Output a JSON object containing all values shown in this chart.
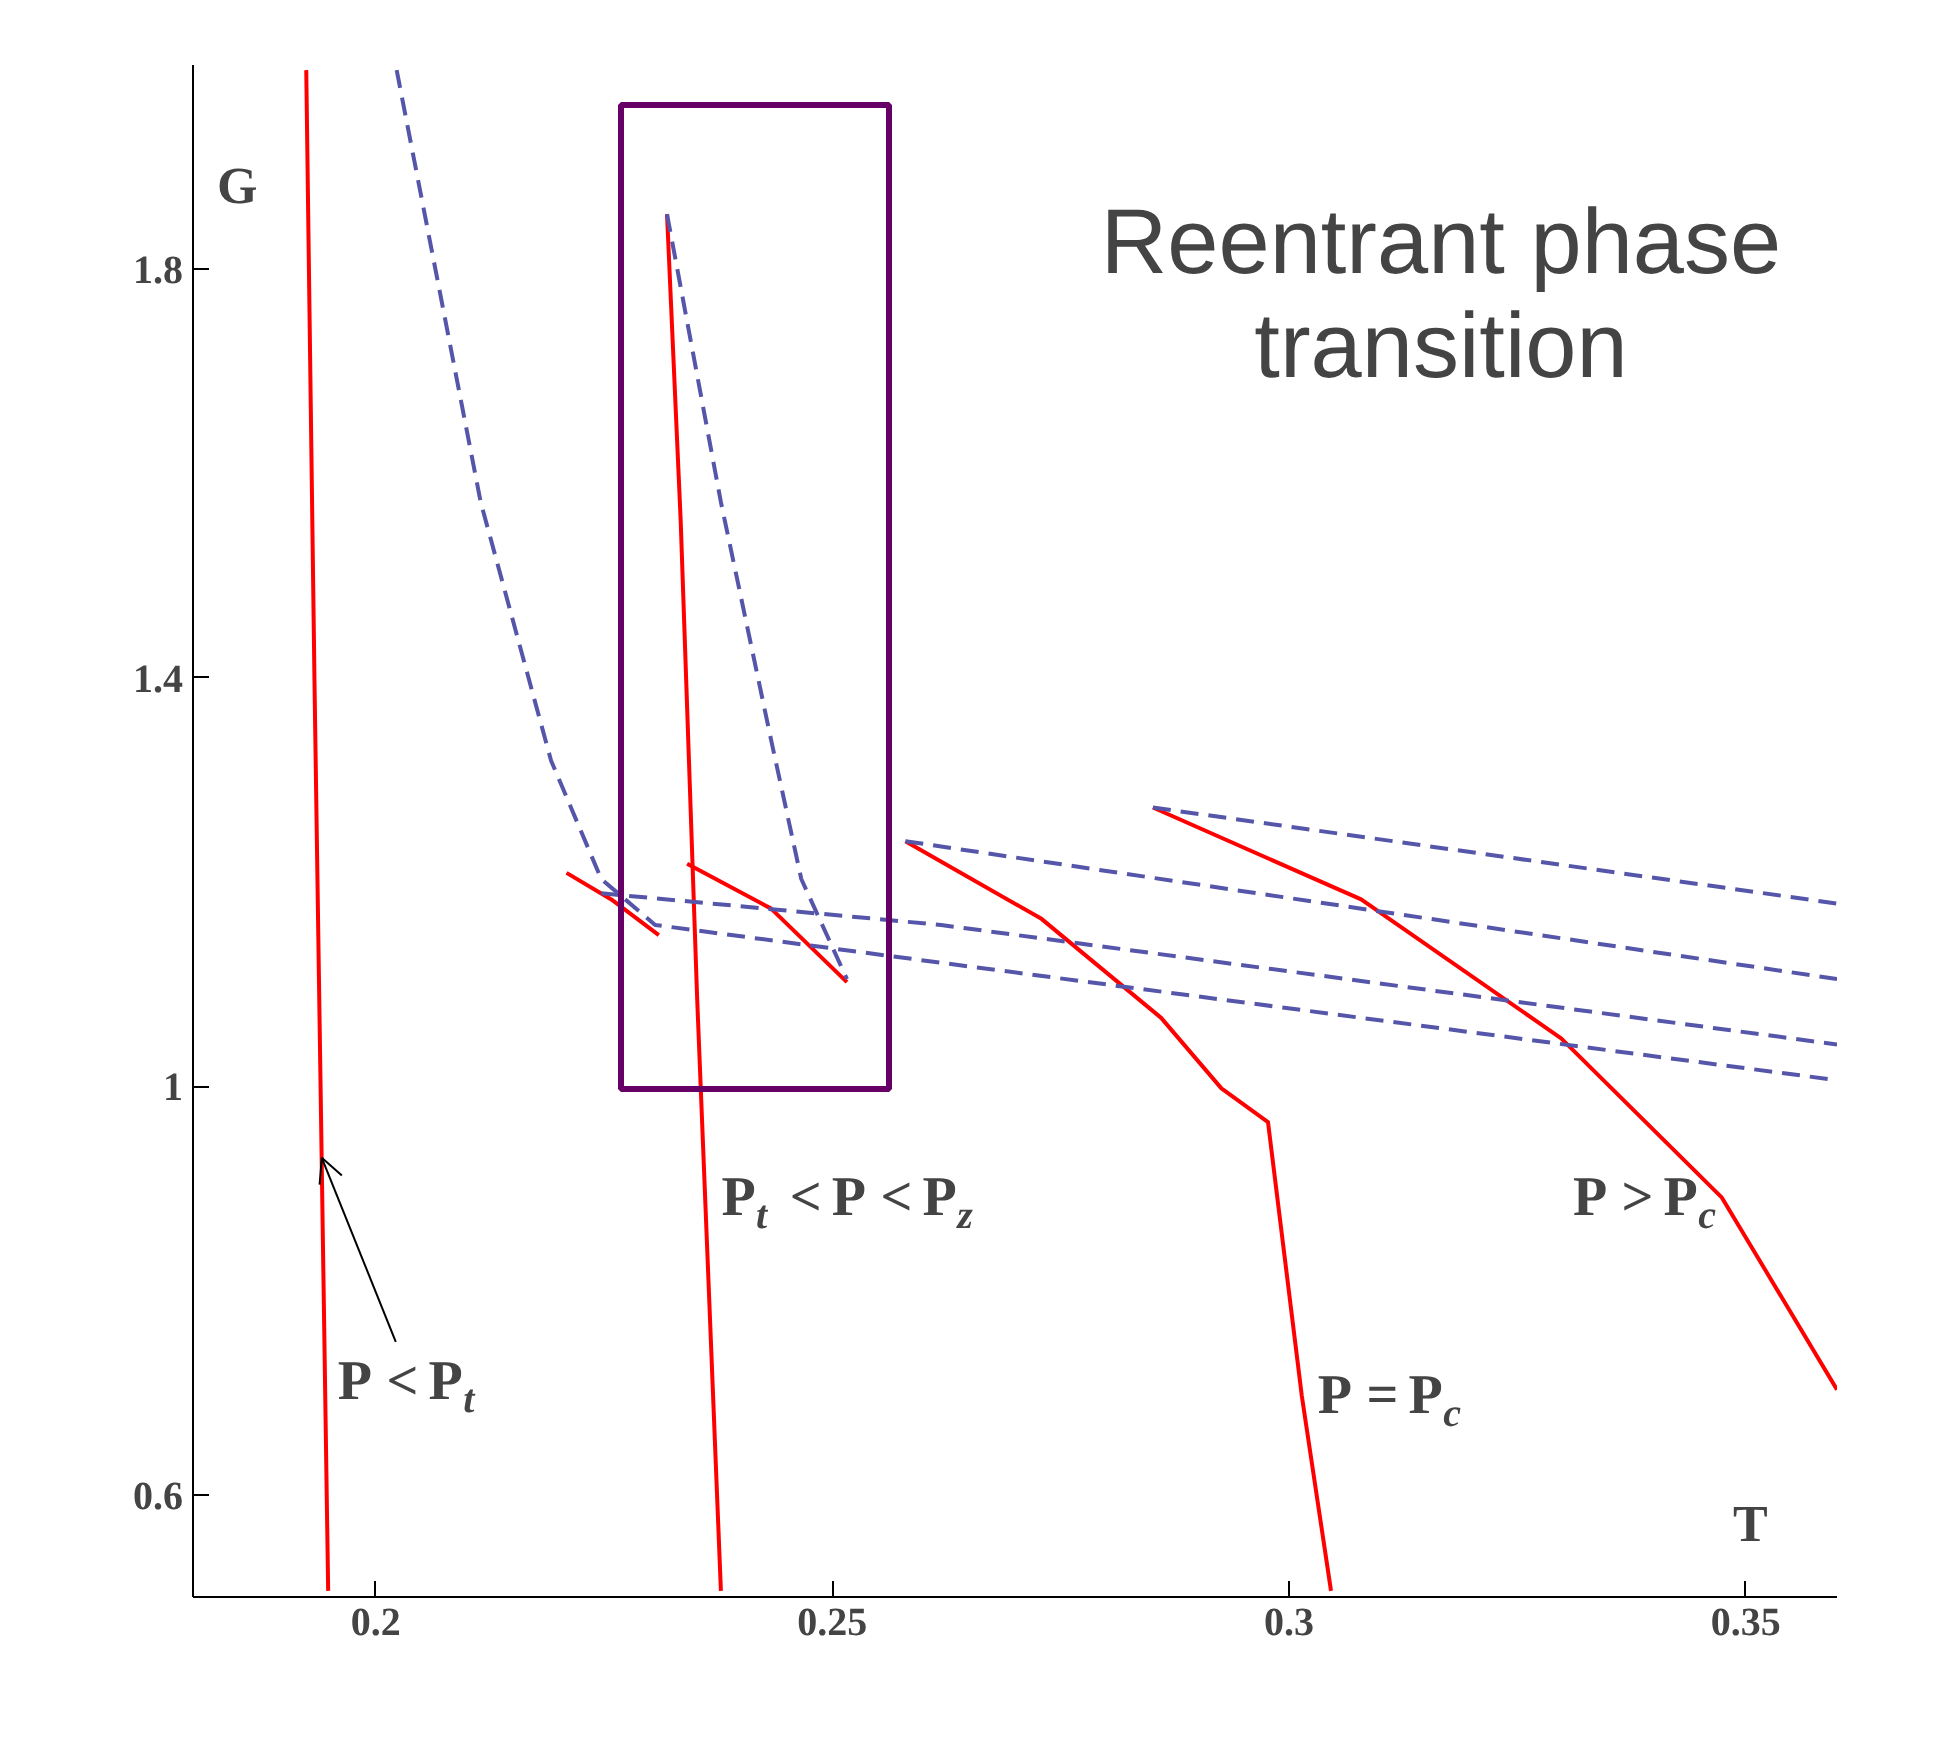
{
  "chart_data": {
    "type": "line",
    "xlabel": "T",
    "ylabel": "G",
    "xlim": [
      0.18,
      0.36
    ],
    "ylim": [
      0.5,
      2.0
    ],
    "xticks": [
      0.2,
      0.25,
      0.3,
      0.35
    ],
    "yticks": [
      0.6,
      1,
      1.4,
      1.8
    ],
    "grid": false,
    "marker": "none",
    "series": [
      {
        "color": "#ff0000",
        "line_style": "solid",
        "x": [
          0.1924,
          0.1933,
          0.1948
        ],
        "values": [
          1.995,
          1.397,
          0.506
        ]
      },
      {
        "color": "#ff0000",
        "line_style": "solid",
        "x": [
          0.2209,
          0.2258,
          0.231
        ],
        "values": [
          1.209,
          1.183,
          1.148
        ]
      },
      {
        "color": "#ff0000",
        "line_style": "solid",
        "x": [
          0.2319,
          0.2334,
          0.2352,
          0.2378
        ],
        "values": [
          1.854,
          1.553,
          1.086,
          0.506
        ]
      },
      {
        "color": "#ff0000",
        "line_style": "solid",
        "x": [
          0.2341,
          0.2433,
          0.2516
        ],
        "values": [
          1.218,
          1.174,
          1.102
        ]
      },
      {
        "color": "#ff0000",
        "line_style": "solid",
        "x": [
          0.258,
          0.2729,
          0.286,
          0.2926,
          0.2977,
          0.3014,
          0.3046
        ],
        "values": [
          1.24,
          1.164,
          1.067,
          0.998,
          0.965,
          0.697,
          0.506
        ]
      },
      {
        "color": "#ff0000",
        "line_style": "solid",
        "x": [
          0.2851,
          0.3079,
          0.3298,
          0.3474,
          0.36
        ],
        "values": [
          1.273,
          1.183,
          1.047,
          0.891,
          0.703
        ]
      },
      {
        "color": "#5555aa",
        "line_style": "dashed",
        "x": [
          0.2023,
          0.2115,
          0.2192,
          0.2247,
          0.2306,
          0.2619,
          0.36
        ],
        "values": [
          1.995,
          1.572,
          1.319,
          1.203,
          1.158,
          1.121,
          1.006
        ]
      },
      {
        "color": "#5555aa",
        "line_style": "dashed",
        "x": [
          0.2247,
          0.2619,
          0.36
        ],
        "values": [
          1.189,
          1.158,
          1.041
        ]
      },
      {
        "color": "#5555aa",
        "line_style": "dashed",
        "x": [
          0.2319,
          0.2378,
          0.2433,
          0.2466,
          0.2516
        ],
        "values": [
          1.854,
          1.572,
          1.339,
          1.203,
          1.105
        ]
      },
      {
        "color": "#5555aa",
        "line_style": "dashed",
        "x": [
          0.258,
          0.36
        ],
        "values": [
          1.24,
          1.105
        ]
      },
      {
        "color": "#5555aa",
        "line_style": "dashed",
        "x": [
          0.2851,
          0.36
        ],
        "values": [
          1.273,
          1.179
        ]
      }
    ],
    "annotations": [
      "Reentrant phase transition",
      {
        "text": "P < P$_{t}$",
        "x": 0.1941,
        "y": 0.93
      },
      {
        "text": "P$_{t}$ < P < P$_{z}$",
        "x": 0.2361,
        "y": 0.891
      },
      {
        "text": "P = P$_{c}$",
        "x": 0.3014,
        "y": 0.697
      },
      {
        "text": "P > P$_{c}$",
        "x": 0.3474,
        "y": 0.891
      }
    ]
  }
}
